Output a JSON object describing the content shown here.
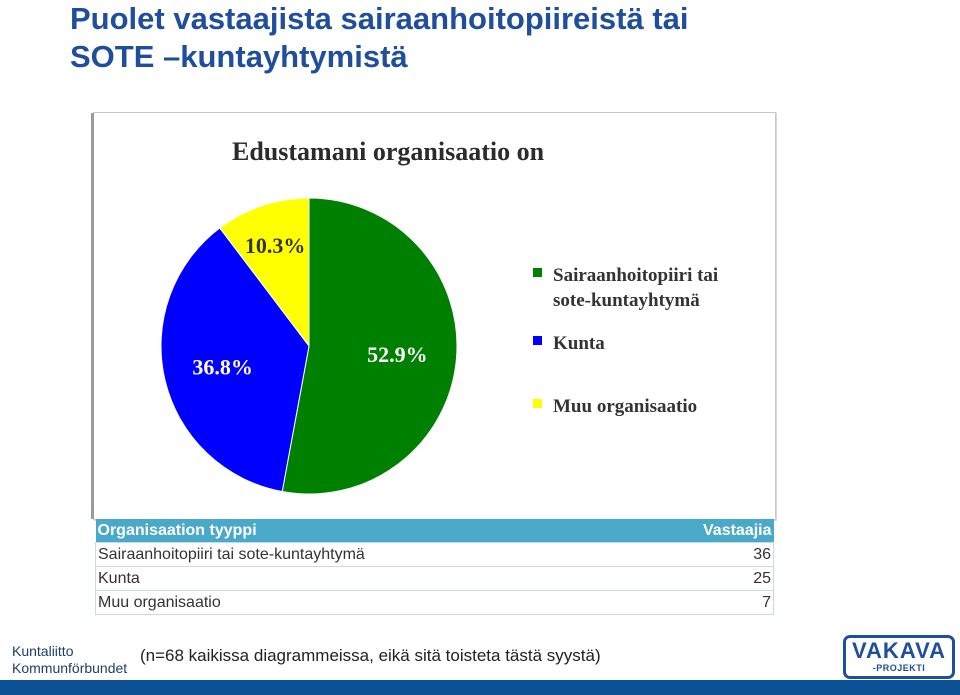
{
  "slide": {
    "title_line1": "Puolet vastaajista sairaanhoitopiireistä tai",
    "title_line2": "SOTE –kuntayhtymistä"
  },
  "chart_data": {
    "type": "pie",
    "title": "Edustamani organisaatio on",
    "categories": [
      "Sairaanhoitopiiri tai sote-kuntayhtymä",
      "Kunta",
      "Muu organisaatio"
    ],
    "values": [
      52.9,
      36.8,
      10.3
    ],
    "value_labels": [
      "52.9%",
      "36.8%",
      "10.3%"
    ],
    "colors": [
      "#008000",
      "#0000ff",
      "#ffff00"
    ],
    "legend_placement": "right",
    "legend": [
      {
        "line1": "Sairaanhoitopiiri tai",
        "line2": "sote-kuntayhtymä"
      },
      {
        "line1": "Kunta",
        "line2": ""
      },
      {
        "line1": "Muu organisaatio",
        "line2": ""
      }
    ]
  },
  "table": {
    "headers": [
      "Organisaation tyyppi",
      "Vastaajia"
    ],
    "rows": [
      {
        "label": "Sairaanhoitopiiri tai sote-kuntayhtymä",
        "value": "36"
      },
      {
        "label": "Kunta",
        "value": "25"
      },
      {
        "label": "Muu organisaatio",
        "value": "7"
      }
    ]
  },
  "footnote": "(n=68 kaikissa diagrammeissa, eikä sitä toisteta tästä syystä)",
  "logos": {
    "left_line1": "Kuntaliitto",
    "left_line2": "Kommunförbundet",
    "right_big": "VAKAVA",
    "right_small": "-PROJEKTI"
  },
  "colors": {
    "title": "#1f4e9c",
    "table_header": "#4aa9c9",
    "bottom_bar": "#0b4f94"
  }
}
